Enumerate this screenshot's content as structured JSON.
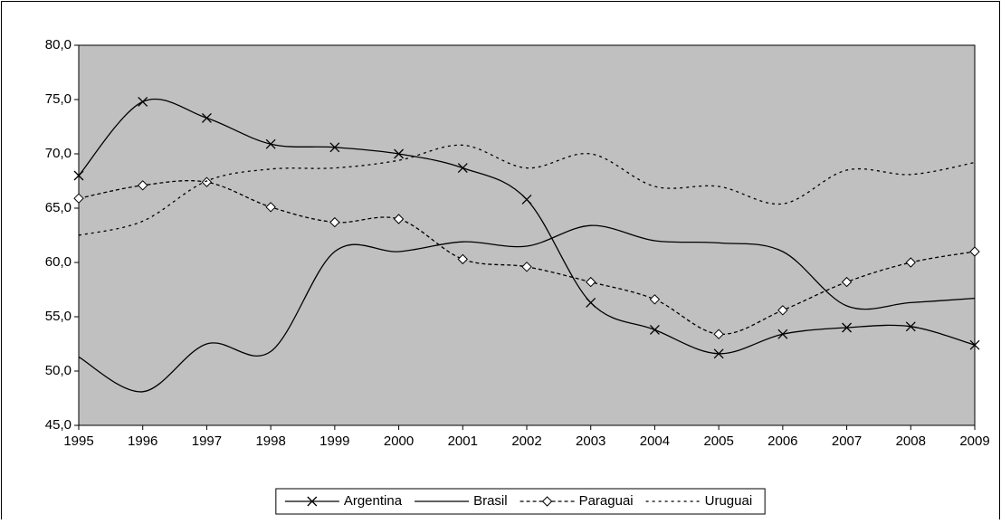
{
  "chart_data": {
    "type": "line",
    "categories": [
      "1995",
      "1996",
      "1997",
      "1998",
      "1999",
      "2000",
      "2001",
      "2002",
      "2003",
      "2004",
      "2005",
      "2006",
      "2007",
      "2008",
      "2009"
    ],
    "series": [
      {
        "name": "Argentina",
        "color": "#000000",
        "marker": "x",
        "line_style": "solid",
        "values": [
          68.0,
          74.8,
          73.3,
          70.9,
          70.6,
          70.0,
          68.7,
          65.8,
          56.3,
          53.8,
          51.6,
          53.4,
          54.0,
          54.1,
          52.4
        ]
      },
      {
        "name": "Brasil",
        "color": "#000000",
        "marker": "none",
        "line_style": "solid",
        "values": [
          51.3,
          48.1,
          52.5,
          51.8,
          61.0,
          61.0,
          61.9,
          61.5,
          63.4,
          62.0,
          61.8,
          61.0,
          56.0,
          56.3,
          56.7
        ]
      },
      {
        "name": "Paraguai",
        "color": "#000000",
        "marker": "diamond",
        "line_style": "dashed",
        "values": [
          65.9,
          67.1,
          67.4,
          65.1,
          63.7,
          64.0,
          60.3,
          59.6,
          58.2,
          56.6,
          53.4,
          55.6,
          58.2,
          60.0,
          61.0
        ]
      },
      {
        "name": "Uruguai",
        "color": "#000000",
        "marker": "none",
        "line_style": "dotted",
        "values": [
          62.5,
          63.8,
          67.5,
          68.6,
          68.7,
          69.4,
          70.8,
          68.7,
          70.0,
          67.0,
          67.0,
          65.4,
          68.5,
          68.1,
          69.2
        ]
      }
    ],
    "ylim": [
      45,
      80
    ],
    "yticks": [
      {
        "value": 45,
        "label": "45,0"
      },
      {
        "value": 50,
        "label": "50,0"
      },
      {
        "value": 55,
        "label": "55,0"
      },
      {
        "value": 60,
        "label": "60,0"
      },
      {
        "value": 65,
        "label": "65,0"
      },
      {
        "value": 70,
        "label": "70,0"
      },
      {
        "value": 75,
        "label": "75,0"
      },
      {
        "value": 80,
        "label": "80,0"
      }
    ],
    "plot_background": "#c0c0c0",
    "legend": "bottom"
  }
}
